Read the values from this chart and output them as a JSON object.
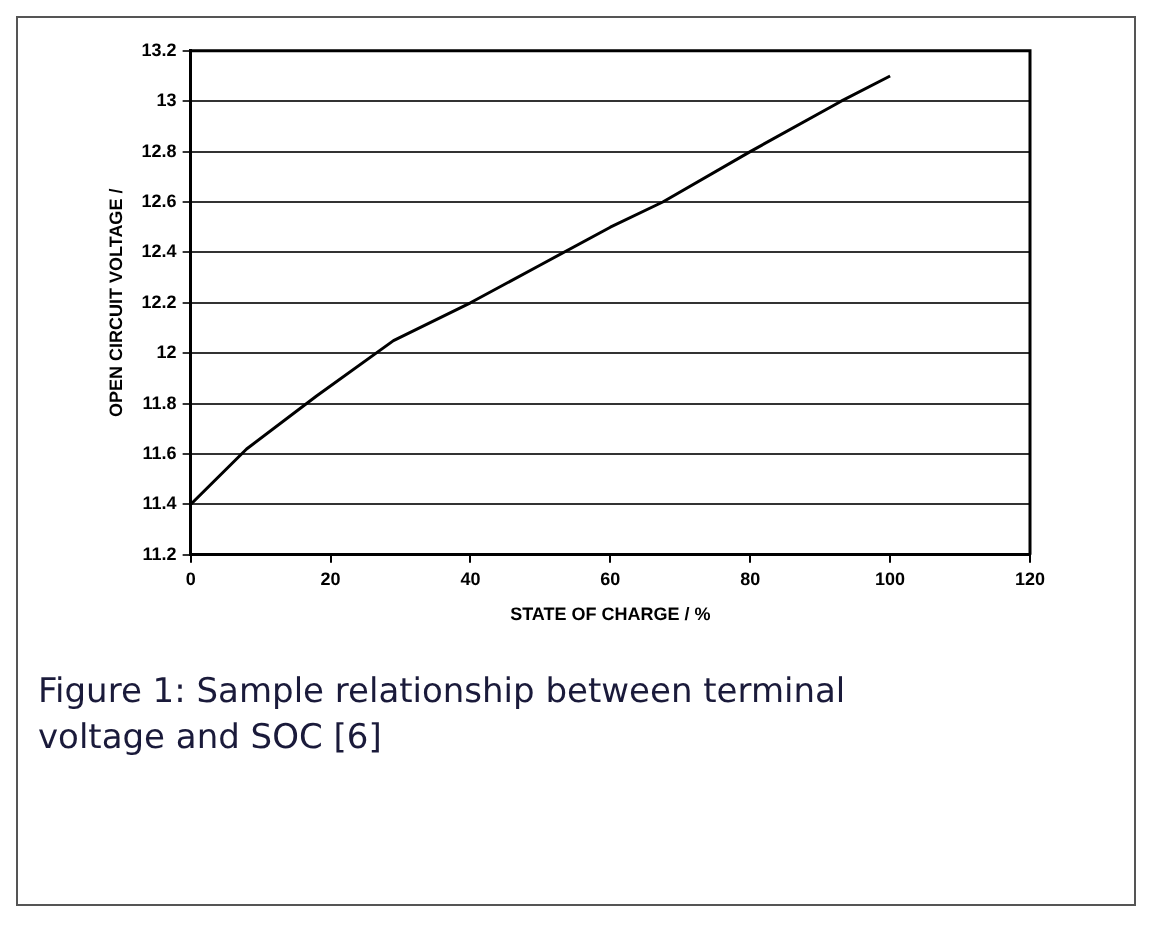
{
  "chart_data": {
    "type": "line",
    "xlabel": "STATE OF CHARGE / %",
    "ylabel": "OPEN CIRCUIT VOLTAGE /",
    "x": [
      0,
      8,
      18,
      29,
      40,
      50,
      60,
      67.5,
      80,
      93,
      100
    ],
    "series": [
      {
        "color": "#000000",
        "values": [
          11.4,
          11.62,
          11.83,
          12.05,
          12.2,
          12.35,
          12.5,
          12.6,
          12.8,
          13,
          13.1
        ]
      }
    ],
    "xlim": [
      0,
      120
    ],
    "xticks": [
      0,
      20,
      40,
      60,
      80,
      100,
      120
    ],
    "ylim": [
      11.2,
      13.2
    ],
    "yticks": [
      11.2,
      11.4,
      11.6,
      11.8,
      12,
      12.2,
      12.4,
      12.6,
      12.8,
      13,
      13.2
    ],
    "grid": "y",
    "legend": false,
    "marker": "none",
    "line_style": "solid",
    "annotations": [
      "Figure 1: Sample relationship between terminal voltage and SOC [6]"
    ]
  }
}
